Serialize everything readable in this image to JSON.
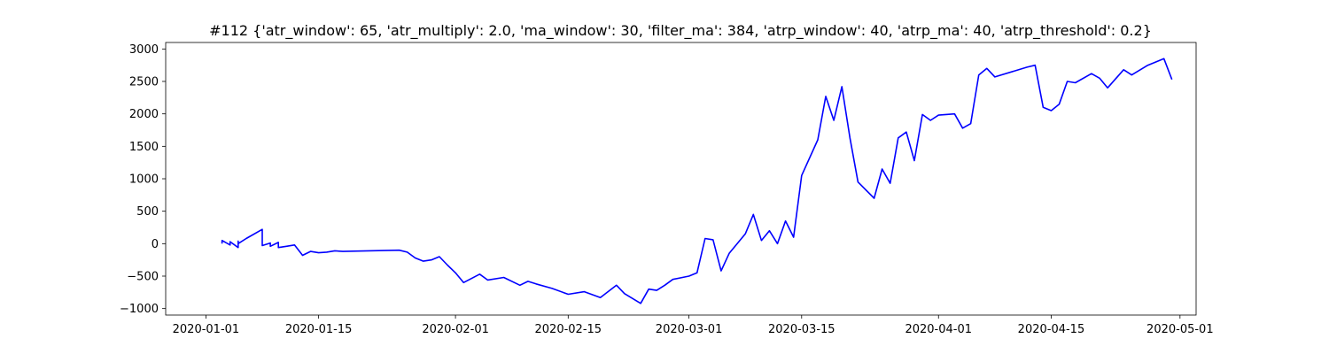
{
  "chart_data": {
    "type": "line",
    "title": "#112 {'atr_window': 65, 'atr_multiply': 2.0, 'ma_window': 30, 'filter_ma': 384, 'atrp_window': 40, 'atrp_ma': 40, 'atrp_threshold': 0.2}",
    "xlabel": "",
    "ylabel": "",
    "xlim": [
      "2019-12-27",
      "2020-05-03"
    ],
    "ylim": [
      -1100,
      3100
    ],
    "grid": false,
    "x_tick_labels": [
      "2020-01-01",
      "2020-01-15",
      "2020-02-01",
      "2020-02-15",
      "2020-03-01",
      "2020-03-15",
      "2020-04-01",
      "2020-04-15",
      "2020-05-01"
    ],
    "y_tick_values": [
      -1000,
      -500,
      0,
      500,
      1000,
      1500,
      2000,
      2500,
      3000
    ],
    "y_tick_labels": [
      "−1000",
      "−500",
      "0",
      "500",
      "1000",
      "1500",
      "2000",
      "2500",
      "3000"
    ],
    "line_color": "#0000ff",
    "series": [
      {
        "x": [
          "2020-01-03",
          "2020-01-03",
          "2020-01-04",
          "2020-01-04",
          "2020-01-05",
          "2020-01-05",
          "2020-01-05",
          "2020-01-06",
          "2020-01-08",
          "2020-01-08",
          "2020-01-09",
          "2020-01-09",
          "2020-01-10",
          "2020-01-10",
          "2020-01-11",
          "2020-01-12",
          "2020-01-13",
          "2020-01-14",
          "2020-01-15",
          "2020-01-16",
          "2020-01-17",
          "2020-01-18",
          "2020-01-25",
          "2020-01-26",
          "2020-01-27",
          "2020-01-28",
          "2020-01-29",
          "2020-01-30",
          "2020-01-31",
          "2020-02-01",
          "2020-02-02",
          "2020-02-04",
          "2020-02-05",
          "2020-02-07",
          "2020-02-09",
          "2020-02-10",
          "2020-02-11",
          "2020-02-13",
          "2020-02-15",
          "2020-02-17",
          "2020-02-19",
          "2020-02-21",
          "2020-02-22",
          "2020-02-24",
          "2020-02-25",
          "2020-02-26",
          "2020-02-27",
          "2020-02-28",
          "2020-03-01",
          "2020-03-02",
          "2020-03-03",
          "2020-03-04",
          "2020-03-05",
          "2020-03-06",
          "2020-03-07",
          "2020-03-08",
          "2020-03-09",
          "2020-03-10",
          "2020-03-11",
          "2020-03-12",
          "2020-03-13",
          "2020-03-14",
          "2020-03-15",
          "2020-03-17",
          "2020-03-18",
          "2020-03-19",
          "2020-03-20",
          "2020-03-21",
          "2020-03-22",
          "2020-03-24",
          "2020-03-25",
          "2020-03-26",
          "2020-03-27",
          "2020-03-28",
          "2020-03-29",
          "2020-03-30",
          "2020-03-31",
          "2020-04-01",
          "2020-04-03",
          "2020-04-04",
          "2020-04-05",
          "2020-04-06",
          "2020-04-07",
          "2020-04-08",
          "2020-04-12",
          "2020-04-13",
          "2020-04-14",
          "2020-04-15",
          "2020-04-16",
          "2020-04-17",
          "2020-04-18",
          "2020-04-20",
          "2020-04-21",
          "2020-04-22",
          "2020-04-24",
          "2020-04-25",
          "2020-04-27",
          "2020-04-28",
          "2020-04-29",
          "2020-04-30"
        ],
        "y": [
          0,
          50,
          -20,
          30,
          -60,
          40,
          0,
          80,
          220,
          -30,
          10,
          -40,
          20,
          -60,
          -40,
          -20,
          -180,
          -120,
          -140,
          -130,
          -110,
          -120,
          -100,
          -130,
          -220,
          -270,
          -250,
          -200,
          -330,
          -450,
          -600,
          -470,
          -560,
          -520,
          -640,
          -580,
          -620,
          -690,
          -780,
          -740,
          -830,
          -640,
          -770,
          -920,
          -700,
          -720,
          -640,
          -550,
          -500,
          -450,
          80,
          60,
          -420,
          -150,
          0,
          150,
          450,
          50,
          200,
          0,
          350,
          100,
          1050,
          1600,
          2270,
          1900,
          2420,
          1630,
          950,
          700,
          1150,
          930,
          1630,
          1720,
          1280,
          1990,
          1900,
          1980,
          2000,
          1780,
          1850,
          2600,
          2700,
          2570,
          2720,
          2750,
          2100,
          2050,
          2150,
          2500,
          2480,
          2620,
          2550,
          2400,
          2680,
          2600,
          2750,
          2800,
          2850,
          2530
        ]
      }
    ]
  }
}
